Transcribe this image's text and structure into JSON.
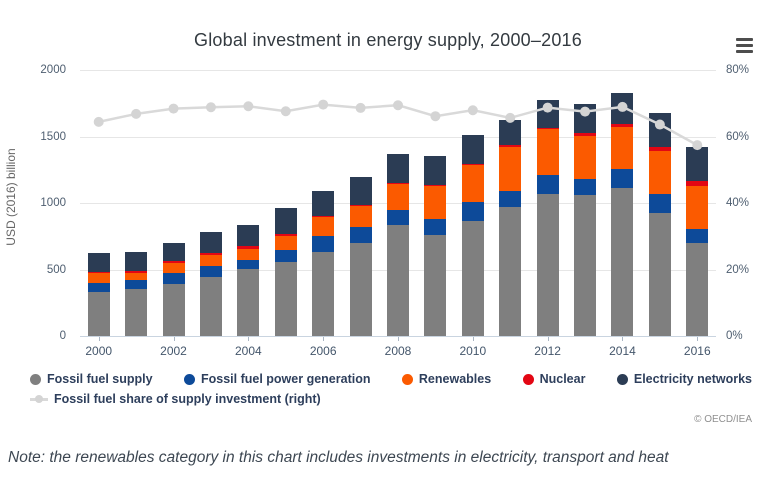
{
  "title": "Global investment in energy supply, 2000–2016",
  "menu": {
    "icon": "hamburger-menu-icon"
  },
  "y_axis": {
    "title": "USD (2016) billion",
    "ticks": [
      "0",
      "500",
      "1000",
      "1500",
      "2000"
    ],
    "min": 0,
    "max": 2000
  },
  "y2_axis": {
    "ticks": [
      "0%",
      "20%",
      "40%",
      "60%",
      "80%"
    ],
    "min": 0,
    "max": 80
  },
  "x_axis": {
    "labels": [
      "2000",
      "2002",
      "2004",
      "2006",
      "2008",
      "2010",
      "2012",
      "2014",
      "2016"
    ]
  },
  "legend": {
    "row1": [
      {
        "label": "Fossil fuel supply",
        "color": "#7f7f7f"
      },
      {
        "label": "Fossil fuel power generation",
        "color": "#0d4a99"
      },
      {
        "label": "Renewables",
        "color": "#fb5a00"
      },
      {
        "label": "Nuclear",
        "color": "#e30613"
      },
      {
        "label": "Electricity networks",
        "color": "#2b3c54"
      }
    ],
    "row2": [
      {
        "label": "Fossil fuel share of supply investment (right)",
        "color": "#d6d6d6",
        "marker": "line"
      }
    ]
  },
  "copyright": "© OECD/IEA",
  "note": "Note: the renewables category in this chart includes investments in electricity, transport and heat",
  "chart_data": {
    "type": "bar",
    "subtype": "stacked-column-with-line",
    "title": "Global investment in energy supply, 2000–2016",
    "xlabel": "",
    "ylabel": "USD (2016) billion",
    "y2label": "Fossil fuel share of supply investment (%)",
    "ylim": [
      0,
      2000
    ],
    "y2lim": [
      0,
      80
    ],
    "grid": true,
    "legend_position": "bottom",
    "categories": [
      2000,
      2001,
      2002,
      2003,
      2004,
      2005,
      2006,
      2007,
      2008,
      2009,
      2010,
      2011,
      2012,
      2013,
      2014,
      2015,
      2016
    ],
    "series": [
      {
        "name": "Fossil fuel supply",
        "color": "#7f7f7f",
        "values": [
          333,
          356,
          389,
          444,
          507,
          557,
          632,
          702,
          835,
          762,
          868,
          968,
          1071,
          1058,
          1113,
          925,
          702
        ]
      },
      {
        "name": "Fossil fuel power generation",
        "color": "#0d4a99",
        "values": [
          68,
          65,
          82,
          83,
          62,
          93,
          120,
          118,
          112,
          118,
          140,
          125,
          143,
          123,
          140,
          143,
          105
        ]
      },
      {
        "name": "Renewables",
        "color": "#fb5a00",
        "values": [
          80,
          53,
          76,
          85,
          88,
          100,
          143,
          155,
          196,
          246,
          276,
          326,
          346,
          326,
          321,
          323,
          324
        ]
      },
      {
        "name": "Nuclear",
        "color": "#e30613",
        "values": [
          4,
          15,
          19,
          10,
          17,
          20,
          8,
          8,
          8,
          10,
          8,
          20,
          5,
          18,
          17,
          28,
          32
        ]
      },
      {
        "name": "Electricity networks",
        "color": "#2b3c54",
        "values": [
          137,
          145,
          136,
          162,
          164,
          192,
          185,
          210,
          221,
          215,
          222,
          183,
          210,
          222,
          234,
          260,
          257
        ]
      }
    ],
    "line_series": {
      "name": "Fossil fuel share of supply investment (right)",
      "axis": "right",
      "color": "#d9d9d9",
      "marker_color": "#d4d4d4",
      "values": [
        64.4,
        66.8,
        68.4,
        68.8,
        69.1,
        67.6,
        69.6,
        68.6,
        69.4,
        66.1,
        67.9,
        65.6,
        68.7,
        67.5,
        68.9,
        63.6,
        57.4
      ]
    },
    "stacked_totals": [
      622,
      634,
      702,
      784,
      838,
      962,
      1088,
      1193,
      1372,
      1351,
      1514,
      1622,
      1775,
      1747,
      1825,
      1679,
      1420
    ]
  }
}
